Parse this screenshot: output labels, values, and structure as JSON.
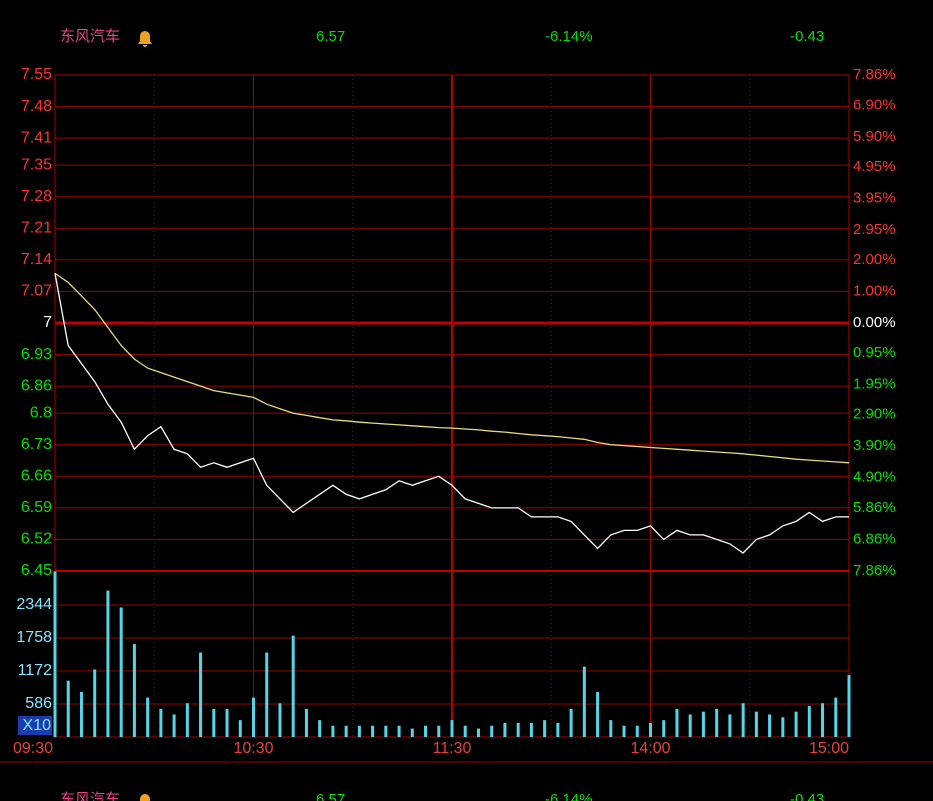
{
  "chart_data": {
    "type": "line",
    "title": "东风汽车",
    "last_price": 6.57,
    "change_pct": {
      "value": -6.14,
      "label": "-6.14%"
    },
    "change": -0.43,
    "xlim": [
      0,
      240
    ],
    "xticks": [
      {
        "value": 0,
        "label": "09:30"
      },
      {
        "value": 60,
        "label": "10:30"
      },
      {
        "value": 120,
        "label": "11:30"
      },
      {
        "value": 180,
        "label": "14:00"
      },
      {
        "value": 240,
        "label": "15:00"
      }
    ],
    "minor_xticks": [
      30,
      90,
      150,
      210
    ],
    "session_break": 120,
    "ylim": [
      6.45,
      7.55
    ],
    "yticks": [
      7.55,
      7.48,
      7.41,
      7.35,
      7.28,
      7.21,
      7.14,
      7.07,
      7.0,
      6.93,
      6.86,
      6.8,
      6.73,
      6.66,
      6.59,
      6.52,
      6.45
    ],
    "ref_line": 7.0,
    "y2lim": [
      -7.86,
      7.86
    ],
    "y2ticks": [
      {
        "value": 7.86,
        "label": "7.86%"
      },
      {
        "value": 6.9,
        "label": "6.90%"
      },
      {
        "value": 5.9,
        "label": "5.90%"
      },
      {
        "value": 4.95,
        "label": "4.95%"
      },
      {
        "value": 3.95,
        "label": "3.95%"
      },
      {
        "value": 2.95,
        "label": "2.95%"
      },
      {
        "value": 2.0,
        "label": "2.00%"
      },
      {
        "value": 1.0,
        "label": "1.00%"
      },
      {
        "value": 0,
        "label": "0.00%"
      },
      {
        "value": -0.95,
        "label": "0.95%"
      },
      {
        "value": -1.95,
        "label": "1.95%"
      },
      {
        "value": -2.9,
        "label": "2.90%"
      },
      {
        "value": -3.9,
        "label": "3.90%"
      },
      {
        "value": -4.9,
        "label": "4.90%"
      },
      {
        "value": -5.86,
        "label": "5.86%"
      },
      {
        "value": -6.86,
        "label": "6.86%"
      },
      {
        "value": -7.86,
        "label": "7.86%"
      }
    ],
    "grid": true,
    "x": [
      0,
      4,
      8,
      12,
      16,
      20,
      24,
      28,
      32,
      36,
      40,
      44,
      48,
      52,
      56,
      60,
      64,
      68,
      72,
      76,
      80,
      84,
      88,
      92,
      96,
      100,
      104,
      108,
      112,
      116,
      120,
      124,
      128,
      132,
      136,
      140,
      144,
      148,
      152,
      156,
      160,
      164,
      168,
      172,
      176,
      180,
      184,
      188,
      192,
      196,
      200,
      204,
      208,
      212,
      216,
      220,
      224,
      228,
      232,
      236,
      240
    ],
    "series": [
      {
        "color": "#ffffff",
        "values": [
          7.11,
          6.95,
          6.91,
          6.87,
          6.82,
          6.78,
          6.72,
          6.75,
          6.77,
          6.72,
          6.71,
          6.68,
          6.69,
          6.68,
          6.69,
          6.7,
          6.64,
          6.61,
          6.58,
          6.6,
          6.62,
          6.64,
          6.62,
          6.61,
          6.62,
          6.63,
          6.65,
          6.64,
          6.65,
          6.66,
          6.64,
          6.61,
          6.6,
          6.59,
          6.59,
          6.59,
          6.57,
          6.57,
          6.57,
          6.56,
          6.53,
          6.5,
          6.53,
          6.54,
          6.54,
          6.55,
          6.52,
          6.54,
          6.53,
          6.53,
          6.52,
          6.51,
          6.49,
          6.52,
          6.53,
          6.55,
          6.56,
          6.58,
          6.56,
          6.57,
          6.57
        ]
      },
      {
        "color": "#e6dc78",
        "values": [
          7.11,
          7.09,
          7.06,
          7.03,
          6.99,
          6.95,
          6.92,
          6.9,
          6.89,
          6.88,
          6.87,
          6.86,
          6.85,
          6.845,
          6.84,
          6.835,
          6.82,
          6.81,
          6.8,
          6.795,
          6.79,
          6.785,
          6.783,
          6.78,
          6.778,
          6.776,
          6.774,
          6.772,
          6.77,
          6.768,
          6.767,
          6.765,
          6.763,
          6.76,
          6.758,
          6.755,
          6.752,
          6.75,
          6.748,
          6.745,
          6.742,
          6.735,
          6.73,
          6.728,
          6.726,
          6.724,
          6.722,
          6.72,
          6.718,
          6.716,
          6.714,
          6.712,
          6.71,
          6.707,
          6.704,
          6.701,
          6.698,
          6.696,
          6.694,
          6.692,
          6.69
        ]
      }
    ],
    "volume": {
      "unit": "X10",
      "color": "#55d6e6",
      "ylim": [
        0,
        2948
      ],
      "yticks": [
        586,
        1172,
        1758,
        2344
      ],
      "values": [
        2940,
        1000,
        800,
        1200,
        2600,
        2300,
        1650,
        700,
        500,
        400,
        600,
        1500,
        500,
        500,
        300,
        700,
        1500,
        600,
        1800,
        500,
        300,
        200,
        200,
        200,
        200,
        200,
        200,
        150,
        200,
        200,
        300,
        200,
        150,
        200,
        250,
        250,
        250,
        300,
        250,
        500,
        1250,
        800,
        300,
        200,
        200,
        250,
        300,
        500,
        400,
        450,
        500,
        400,
        600,
        450,
        400,
        350,
        450,
        550,
        600,
        700,
        1100
      ]
    }
  }
}
